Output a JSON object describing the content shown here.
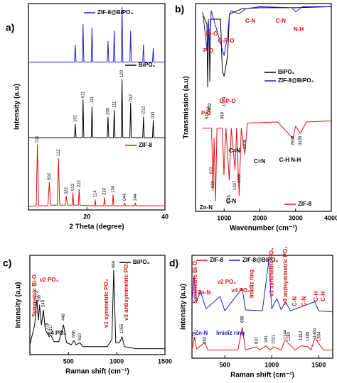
{
  "chart_data": [
    {
      "type": "line",
      "panel": "a)",
      "xlabel": "2 Theta (degree)",
      "ylabel": "Intensity (a.u)",
      "xlim": [
        5,
        40
      ],
      "xticks": [
        20,
        40
      ],
      "ylim": [
        0,
        3
      ],
      "series": [
        {
          "name": "ZIF-8@BiPO₄",
          "color": "#1f1fd6",
          "x": [
            5,
            16.8,
            17,
            17.2,
            18.8,
            19,
            19.2,
            21.1,
            21.3,
            21.5,
            25.2,
            25.4,
            25.6,
            26.8,
            27,
            27.2,
            28.8,
            29,
            29.2,
            31,
            31.2,
            31.4,
            34.3,
            34.5,
            34.7,
            36.8,
            37,
            37.2,
            40
          ],
          "values": [
            2.15,
            2.15,
            2.4,
            2.15,
            2.15,
            2.7,
            2.15,
            2.15,
            2.65,
            2.15,
            2.15,
            2.45,
            2.15,
            2.15,
            2.6,
            2.15,
            2.15,
            2.95,
            2.15,
            2.15,
            2.6,
            2.15,
            2.15,
            2.4,
            2.15,
            2.15,
            2.35,
            2.15,
            2.15
          ]
        },
        {
          "name": "BiPO₄",
          "color": "#000000",
          "x": [
            5,
            16.8,
            17,
            17.2,
            18.8,
            19,
            19.2,
            21.1,
            21.3,
            21.5,
            25.2,
            25.4,
            25.6,
            26.8,
            27,
            27.2,
            28.8,
            29,
            29.2,
            31,
            31.2,
            31.4,
            34.3,
            34.5,
            34.7,
            36.8,
            37,
            37.2,
            40
          ],
          "values": [
            1.05,
            1.05,
            1.25,
            1.05,
            1.05,
            1.6,
            1.05,
            1.05,
            1.5,
            1.05,
            1.05,
            1.35,
            1.05,
            1.05,
            1.45,
            1.05,
            1.05,
            1.9,
            1.05,
            1.05,
            1.55,
            1.05,
            1.05,
            1.35,
            1.05,
            1.05,
            1.3,
            1.05,
            1.05
          ]
        },
        {
          "name": "ZIF-8",
          "color": "#e01010",
          "x": [
            5,
            7,
            7.3,
            7.6,
            10,
            10.35,
            10.7,
            12.4,
            12.7,
            13,
            14.4,
            14.7,
            15,
            16.2,
            16.4,
            16.6,
            17.8,
            18,
            18.2,
            22,
            22.1,
            22.3,
            24.3,
            24.5,
            24.7,
            26.5,
            26.7,
            26.9,
            29.5,
            29.7,
            29.9,
            32.2,
            32.4,
            32.6,
            35,
            40
          ],
          "values": [
            0.05,
            0.06,
            0.95,
            0.06,
            0.06,
            0.4,
            0.07,
            0.07,
            0.75,
            0.07,
            0.07,
            0.2,
            0.07,
            0.07,
            0.25,
            0.07,
            0.07,
            0.3,
            0.07,
            0.06,
            0.15,
            0.06,
            0.06,
            0.18,
            0.06,
            0.06,
            0.22,
            0.06,
            0.06,
            0.1,
            0.06,
            0.06,
            0.1,
            0.06,
            0.06,
            0.06
          ]
        }
      ],
      "annotations": [
        {
          "text": "101",
          "x": 17,
          "color": "#000000"
        },
        {
          "text": "011",
          "x": 19,
          "color": "#000000"
        },
        {
          "text": "-111",
          "x": 21.3,
          "color": "#000000"
        },
        {
          "text": "200",
          "x": 25.4,
          "color": "#000000"
        },
        {
          "text": "111",
          "x": 27,
          "color": "#000000"
        },
        {
          "text": "120",
          "x": 29,
          "color": "#000000"
        },
        {
          "text": "012",
          "x": 31.2,
          "color": "#000000"
        },
        {
          "text": "-212",
          "x": 34.5,
          "color": "#000000"
        },
        {
          "text": "031",
          "x": 37,
          "color": "#000000"
        },
        {
          "text": "011",
          "x": 7.3,
          "color": "#000000"
        },
        {
          "text": "002",
          "x": 10.35,
          "color": "#000000"
        },
        {
          "text": "112",
          "x": 12.7,
          "color": "#000000"
        },
        {
          "text": "022",
          "x": 14.7,
          "color": "#000000"
        },
        {
          "text": "013",
          "x": 16.4,
          "color": "#000000"
        },
        {
          "text": "222",
          "x": 18,
          "color": "#000000"
        },
        {
          "text": "114",
          "x": 22.1,
          "color": "#000000"
        },
        {
          "text": "233",
          "x": 24.5,
          "color": "#000000"
        },
        {
          "text": "134",
          "x": 26.7,
          "color": "#000000"
        },
        {
          "text": "044",
          "x": 29.7,
          "color": "#000000"
        },
        {
          "text": "244",
          "x": 32.4,
          "color": "#000000"
        }
      ]
    },
    {
      "type": "line",
      "panel": "b)",
      "xlabel": "Wavenumber (cm⁻¹)",
      "ylabel": "Transmission (a.u)",
      "xlim": [
        200,
        4000
      ],
      "xticks": [
        1000,
        2000,
        3000,
        4000
      ],
      "ylim": [
        0,
        2
      ],
      "series": [
        {
          "name": "BiPO₄",
          "color": "#000000",
          "x": [
            400,
            520,
            540,
            560,
            580,
            600,
            620,
            900,
            950,
            1000,
            1050,
            1100,
            1150,
            1500,
            2000,
            3000,
            4000
          ],
          "values": [
            1.9,
            1.8,
            1.2,
            1.7,
            1.75,
            1.25,
            1.85,
            1.85,
            1.35,
            1.3,
            1.4,
            1.5,
            1.9,
            1.95,
            1.96,
            1.96,
            1.97
          ]
        },
        {
          "name": "ZIF-8@BiPO₄",
          "color": "#1f1fd6",
          "x": [
            400,
            540,
            560,
            600,
            640,
            1000,
            1050,
            1100,
            1145,
            1200,
            1420,
            1600,
            2000,
            2900,
            3000,
            3200,
            4000
          ],
          "values": [
            1.92,
            1.5,
            1.85,
            1.55,
            1.93,
            1.5,
            1.6,
            1.7,
            1.88,
            1.93,
            1.9,
            1.95,
            1.97,
            1.96,
            1.92,
            1.97,
            1.97
          ]
        },
        {
          "name": "ZIF-8",
          "color": "#e01010",
          "x": [
            400,
            650,
            690,
            720,
            760,
            800,
            950,
            995,
            1050,
            1145,
            1200,
            1307,
            1350,
            1420,
            1480,
            1580,
            1650,
            2500,
            2930,
            3000,
            3135,
            3300,
            4000
          ],
          "values": [
            0.8,
            0.8,
            0.2,
            0.7,
            0.1,
            0.8,
            0.8,
            0.35,
            0.8,
            0.3,
            0.8,
            0.4,
            0.8,
            0.15,
            0.8,
            0.55,
            0.85,
            0.86,
            0.7,
            0.82,
            0.75,
            0.86,
            0.87
          ]
        }
      ],
      "annotations": [
        {
          "text": "Bi-O",
          "x": 658,
          "color": "#e01010"
        },
        {
          "text": "P-O",
          "x": 558,
          "color": "#e01010"
        },
        {
          "text": "O-P-O",
          "x": 1055,
          "color": "#e01010"
        },
        {
          "text": "C-N",
          "x": 1732,
          "color": "#e01010"
        },
        {
          "text": "C-N",
          "x": 2587,
          "color": "#e01010"
        },
        {
          "text": "N-H",
          "x": 3085,
          "color": "#e01010"
        },
        {
          "text": "524",
          "x": 524,
          "color": "#000000"
        },
        {
          "text": "564",
          "x": 564,
          "color": "#000000"
        },
        {
          "text": "602",
          "x": 602,
          "color": "#000000"
        },
        {
          "text": "959",
          "x": 959,
          "color": "#000000"
        },
        {
          "text": "1004",
          "x": 1004,
          "color": "#000000"
        },
        {
          "text": "P-O",
          "x": 500,
          "color": "#e01010"
        },
        {
          "text": "O-P-O",
          "x": 1100,
          "color": "#e01010"
        },
        {
          "text": "690",
          "x": 690,
          "color": "#000000"
        },
        {
          "text": "672",
          "x": 650,
          "color": "#000000"
        },
        {
          "text": "C=N",
          "x": 1294,
          "color": "#000000"
        },
        {
          "text": "C=N",
          "x": 1991,
          "color": "#000000"
        },
        {
          "text": "1145",
          "x": 1145,
          "color": "#000000"
        },
        {
          "text": "1307",
          "x": 1307,
          "color": "#000000"
        },
        {
          "text": "1420",
          "x": 1420,
          "color": "#000000"
        },
        {
          "text": "1578",
          "x": 1578,
          "color": "#000000"
        },
        {
          "text": "C-N",
          "x": 1195,
          "color": "#000000"
        },
        {
          "text": "Zn-N",
          "x": 498,
          "color": "#000000"
        },
        {
          "text": "2928",
          "x": 2928,
          "color": "#000000"
        },
        {
          "text": "3135",
          "x": 3135,
          "color": "#000000"
        },
        {
          "text": "C-H  N-H",
          "x": 2846,
          "color": "#000000"
        }
      ]
    },
    {
      "type": "line",
      "panel": "c)",
      "xlabel": "Raman shift (cm⁻¹)",
      "ylabel": "Intensity (a.u)",
      "xlim": [
        100,
        1500
      ],
      "xticks": [
        500,
        1000,
        1500
      ],
      "ylim": [
        0,
        1
      ],
      "series": [
        {
          "name": "BiPO₄",
          "color": "#000000",
          "x": [
            100,
            150,
            172,
            190,
            200,
            220,
            240,
            260,
            278,
            300,
            317,
            350,
            400,
            449,
            480,
            530,
            556,
            580,
            619,
            650,
            900,
            950,
            969,
            990,
            1030,
            1055,
            1080,
            1200,
            1500
          ],
          "values": [
            0.1,
            0.3,
            0.55,
            0.35,
            0.5,
            0.3,
            0.45,
            0.25,
            0.22,
            0.18,
            0.2,
            0.13,
            0.13,
            0.3,
            0.12,
            0.1,
            0.14,
            0.1,
            0.12,
            0.08,
            0.08,
            0.15,
            0.85,
            0.12,
            0.12,
            0.18,
            0.08,
            0.06,
            0.06
          ]
        }
      ],
      "annotations": [
        {
          "text": "Symmetric Bi-O",
          "x": 150,
          "color": "#e01010"
        },
        {
          "text": "ν2 PO₄",
          "x": 300,
          "color": "#e01010"
        },
        {
          "text": "ν4 PO₄",
          "x": 380,
          "color": "#000000"
        },
        {
          "text": "ν1 symmetric PO₄",
          "x": 896,
          "color": "#e01010"
        },
        {
          "text": "ν3 antisymmetric PO₄",
          "x": 1100,
          "color": "#e01010"
        },
        {
          "text": "172",
          "x": 172,
          "color": "#000000"
        },
        {
          "text": "200",
          "x": 200,
          "color": "#000000"
        },
        {
          "text": "240",
          "x": 240,
          "color": "#000000"
        },
        {
          "text": "278",
          "x": 278,
          "color": "#000000"
        },
        {
          "text": "317",
          "x": 317,
          "color": "#000000"
        },
        {
          "text": "449",
          "x": 449,
          "color": "#000000"
        },
        {
          "text": "556",
          "x": 556,
          "color": "#000000"
        },
        {
          "text": "619",
          "x": 619,
          "color": "#000000"
        },
        {
          "text": "969",
          "x": 969,
          "color": "#000000"
        },
        {
          "text": "1055",
          "x": 1055,
          "color": "#000000"
        }
      ]
    },
    {
      "type": "line",
      "panel": "d)",
      "xlabel": "Raman shift (cm⁻¹)",
      "ylabel": "Intensity (a.u)",
      "xlim": [
        150,
        1650
      ],
      "xticks": [
        500,
        1000,
        1500
      ],
      "ylim": [
        0,
        1
      ],
      "series": [
        {
          "name": "ZIF-8",
          "color": "#e01010",
          "x": [
            150,
            176,
            200,
            284,
            320,
            640,
            686,
            720,
            837,
            870,
            941,
            980,
            1021,
            1100,
            1144,
            1183,
            1250,
            1312,
            1385,
            1420,
            1460,
            1504,
            1550,
            1650
          ],
          "values": [
            0.08,
            0.2,
            0.09,
            0.15,
            0.08,
            0.08,
            0.3,
            0.08,
            0.11,
            0.08,
            0.12,
            0.08,
            0.11,
            0.08,
            0.18,
            0.14,
            0.08,
            0.12,
            0.11,
            0.08,
            0.2,
            0.14,
            0.08,
            0.08
          ]
        },
        {
          "name": "ZIF-8@BiPO₄",
          "color": "#1f1fd6",
          "x": [
            150,
            172,
            200,
            240,
            300,
            449,
            500,
            686,
            720,
            900,
            969,
            1000,
            1055,
            1100,
            1144,
            1200,
            1460,
            1500,
            1650
          ],
          "values": [
            0.55,
            0.8,
            0.55,
            0.65,
            0.48,
            0.6,
            0.46,
            0.68,
            0.47,
            0.46,
            0.95,
            0.48,
            0.58,
            0.47,
            0.55,
            0.46,
            0.55,
            0.46,
            0.45
          ]
        }
      ],
      "annotations": [
        {
          "text": "Symmetric Bi-O",
          "x": 188,
          "color": "#e01010"
        },
        {
          "text": "Zn-N",
          "x": 280,
          "color": "#e01010"
        },
        {
          "text": "ν2 PO₄",
          "x": 520,
          "color": "#e01010"
        },
        {
          "text": "ν4 PO₄",
          "x": 670,
          "color": "#e01010"
        },
        {
          "text": "Imidiz ring",
          "x": 790,
          "color": "#e01010"
        },
        {
          "text": "ν1 symmetric PO₄",
          "x": 1000,
          "color": "#e01010"
        },
        {
          "text": "ν3 antisymmetric PO₄",
          "x": 1150,
          "color": "#e01010"
        },
        {
          "text": "C-N",
          "x": 1248,
          "color": "#e01010"
        },
        {
          "text": "C-N",
          "x": 1347,
          "color": "#e01010"
        },
        {
          "text": "C-H",
          "x": 1476,
          "color": "#e01010"
        },
        {
          "text": "C-H",
          "x": 1551,
          "color": "#e01010"
        },
        {
          "text": "Zn-N",
          "x": 250,
          "color": "#1f1fd6"
        },
        {
          "text": "Imidiz ring",
          "x": 560,
          "color": "#1f1fd6"
        },
        {
          "text": "686",
          "x": 686,
          "color": "#000000"
        },
        {
          "text": "176",
          "x": 176,
          "color": "#000000"
        },
        {
          "text": "284",
          "x": 284,
          "color": "#000000"
        },
        {
          "text": "837",
          "x": 837,
          "color": "#000000"
        },
        {
          "text": "941",
          "x": 941,
          "color": "#000000"
        },
        {
          "text": "1021",
          "x": 1021,
          "color": "#000000"
        },
        {
          "text": "1144",
          "x": 1144,
          "color": "#000000"
        },
        {
          "text": "1183",
          "x": 1183,
          "color": "#000000"
        },
        {
          "text": "1312",
          "x": 1312,
          "color": "#000000"
        },
        {
          "text": "1385",
          "x": 1385,
          "color": "#000000"
        },
        {
          "text": "1460",
          "x": 1460,
          "color": "#000000"
        },
        {
          "text": "1504",
          "x": 1504,
          "color": "#000000"
        }
      ]
    }
  ]
}
